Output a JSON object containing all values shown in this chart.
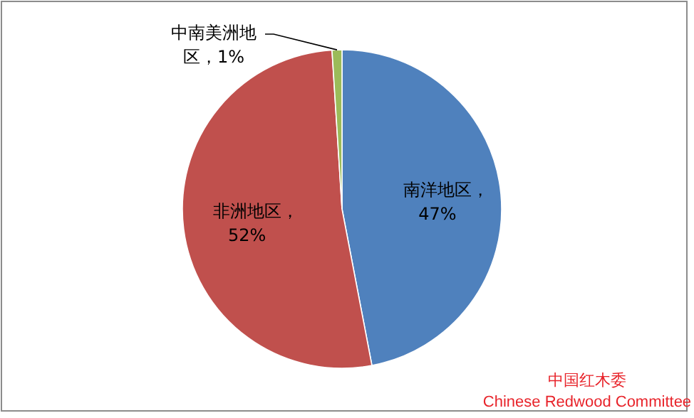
{
  "chart_data": {
    "type": "pie",
    "categories": [
      "南洋地区",
      "非洲地区",
      "中南美洲地区"
    ],
    "values": [
      47,
      52,
      1
    ],
    "colors": [
      "#4f81bd",
      "#c0504d",
      "#9bbb59"
    ],
    "value_labels": [
      "，47%",
      "，52%",
      "，1%"
    ],
    "annotations": [
      "中国红木委",
      "Chinese Redwood Committee"
    ]
  }
}
